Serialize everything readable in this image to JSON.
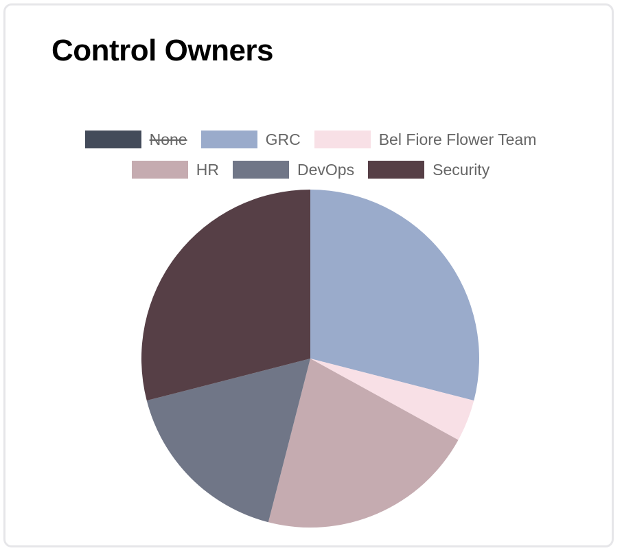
{
  "card": {
    "title": "Control Owners"
  },
  "chart_data": {
    "type": "pie",
    "title": "Control Owners",
    "legend_position": "top",
    "labels": [
      "None",
      "GRC",
      "Bel Fiore Flower Team",
      "HR",
      "DevOps",
      "Security"
    ],
    "values": [
      0,
      29,
      4,
      21,
      17,
      29
    ],
    "colors": [
      "#434b5a",
      "#9aabcb",
      "#f8e0e6",
      "#c5abb0",
      "#707687",
      "#563f46"
    ],
    "hidden": [
      true,
      false,
      false,
      false,
      false,
      false
    ],
    "legend_rows": [
      [
        0,
        1,
        2
      ],
      [
        3,
        4,
        5
      ]
    ]
  }
}
